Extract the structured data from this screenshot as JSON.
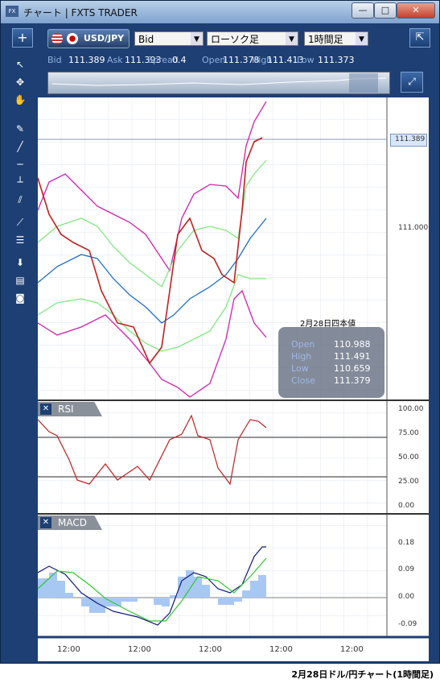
{
  "window": {
    "title": "チャート | FXTS TRADER",
    "buttons": [
      "—",
      "□",
      "✕"
    ]
  },
  "toolbar": {
    "add": "+",
    "symbol": "USD/JPY",
    "price_type": "Bid",
    "chart_type": "ローソク足",
    "timeframe": "1時間足"
  },
  "prices": [
    {
      "label": "Bid",
      "value": "111.389"
    },
    {
      "label": "Ask",
      "value": "111.393"
    },
    {
      "label": "Spread",
      "value": "0.4"
    },
    {
      "label": "Open",
      "value": "111.378"
    },
    {
      "label": "High",
      "value": "111.413"
    },
    {
      "label": "Low",
      "value": "111.373"
    }
  ],
  "main_chart": {
    "current_price": "111.389",
    "axis_labels": [
      "111.000"
    ],
    "ohlc_box": {
      "title": "2月28日四本値",
      "rows": [
        {
          "label": "Open",
          "value": "110.988"
        },
        {
          "label": "High",
          "value": "111.491"
        },
        {
          "label": "Low",
          "value": "110.659"
        },
        {
          "label": "Close",
          "value": "111.379"
        }
      ]
    }
  },
  "rsi": {
    "label": "RSI",
    "close": "✕",
    "axis_labels": [
      "100.00",
      "75.00",
      "50.00",
      "25.00",
      "0.00"
    ]
  },
  "macd": {
    "label": "MACD",
    "close": "✕",
    "axis_labels": [
      "0.18",
      "0.09",
      "0.00",
      "-0.09"
    ]
  },
  "time_axis": [
    "12:00",
    "12:00",
    "12:00",
    "12:00",
    "12:00"
  ],
  "caption": "2月28日ドル/円チャート(1時間足)"
}
